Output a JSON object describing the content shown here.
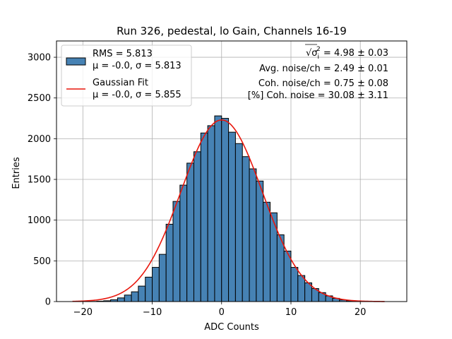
{
  "chart_data": {
    "type": "bar",
    "title": "Run 326, pedestal, lo Gain, Channels 16-19",
    "xlabel": "ADC Counts",
    "ylabel": "Entries",
    "xlim": [
      -23.8,
      26.7
    ],
    "ylim": [
      0,
      3200
    ],
    "xticks": [
      -20,
      -10,
      0,
      10,
      20
    ],
    "xtick_labels": [
      "−20",
      "−10",
      "0",
      "10",
      "20"
    ],
    "yticks": [
      0,
      500,
      1000,
      1500,
      2000,
      2500,
      3000
    ],
    "yticks_labels": [
      "0",
      "500",
      "1000",
      "1500",
      "2000",
      "2500",
      "3000"
    ],
    "grid": true,
    "bin_width": 1,
    "series": [
      {
        "name": "RMS = 5.813",
        "name_line2": "μ = -0.0, σ = 5.813",
        "kind": "histogram",
        "color": "#4682b4",
        "edgecolor": "#000000",
        "bin_left_edges": [
          -19,
          -18,
          -17,
          -16,
          -15,
          -14,
          -13,
          -12,
          -11,
          -10,
          -9,
          -8,
          -7,
          -6,
          -5,
          -4,
          -3,
          -2,
          -1,
          0,
          1,
          2,
          3,
          4,
          5,
          6,
          7,
          8,
          9,
          10,
          11,
          12,
          13,
          14,
          15,
          16,
          17,
          18,
          19,
          20,
          21
        ],
        "values": [
          2,
          5,
          10,
          22,
          45,
          80,
          120,
          190,
          300,
          420,
          580,
          950,
          1230,
          1430,
          1700,
          1840,
          2070,
          2160,
          2280,
          2250,
          2080,
          1940,
          1780,
          1630,
          1480,
          1220,
          1090,
          820,
          620,
          420,
          320,
          230,
          160,
          110,
          70,
          40,
          20,
          10,
          5,
          2,
          1
        ]
      },
      {
        "name": "Gaussian Fit",
        "name_line2": "μ = -0.0, σ = 5.855",
        "kind": "line",
        "color": "#e8160c",
        "amplitude": 2230,
        "mean": 0.0,
        "sigma": 5.855,
        "x_range": [
          -21.5,
          23.5
        ]
      }
    ],
    "legend": {
      "placement": "top-left"
    },
    "annotations": [
      {
        "prefix": "√σ",
        "sub": "i",
        "sup": "2",
        "text": " = 4.98 ± 0.03"
      },
      {
        "text": "Avg. noise/ch = 2.49 ± 0.01"
      },
      {
        "text": "Coh. noise/ch = 0.75 ± 0.08"
      },
      {
        "text": "[%] Coh. noise = 30.08 ± 3.11"
      }
    ]
  }
}
